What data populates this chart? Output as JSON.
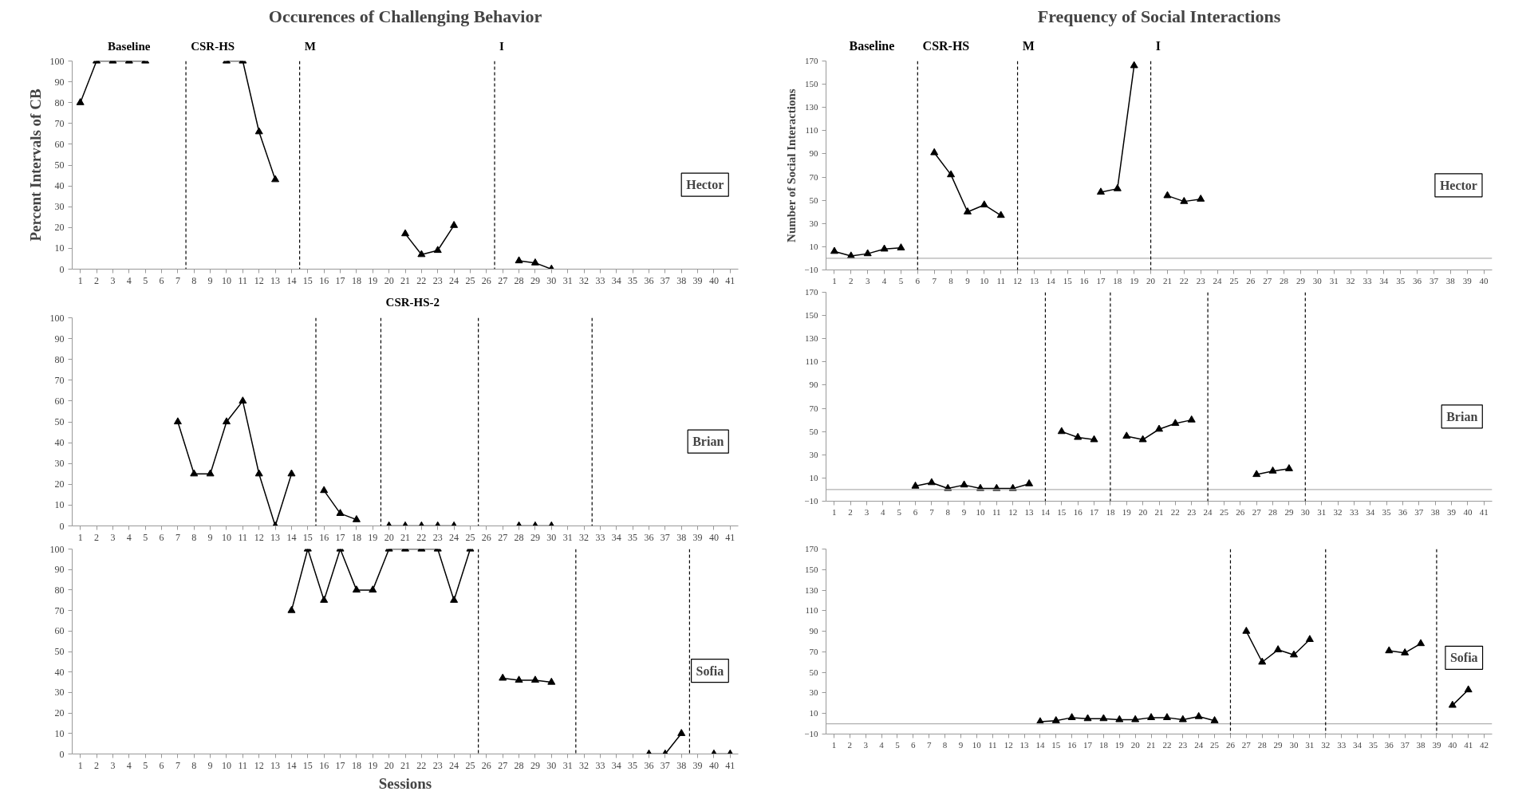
{
  "chart_data": [
    {
      "type": "line",
      "title": "Occurences of Challenging Behavior",
      "ylabel": "Percent Intervals of CB",
      "xlim": [
        0.5,
        41.5
      ],
      "xticks": [
        1,
        2,
        3,
        4,
        5,
        6,
        7,
        8,
        9,
        10,
        11,
        12,
        13,
        14,
        15,
        16,
        17,
        18,
        19,
        20,
        21,
        22,
        23,
        24,
        25,
        26,
        27,
        28,
        29,
        30,
        31,
        32,
        33,
        34,
        35,
        36,
        37,
        38,
        39,
        40,
        41
      ],
      "ylim": [
        0,
        100
      ],
      "yticks": [
        0,
        10,
        20,
        30,
        40,
        50,
        60,
        70,
        80,
        90,
        100
      ],
      "grid": false,
      "marker": "triangle",
      "line_style": "solid",
      "series": [
        {
          "color": "#000000",
          "x": [
            1,
            2,
            3,
            4,
            5,
            6,
            10,
            11,
            12,
            13,
            14,
            21,
            22,
            23,
            24,
            25,
            28,
            29,
            30
          ],
          "values": [
            80,
            100,
            100,
            100,
            100,
            null,
            100,
            100,
            66,
            43,
            null,
            17,
            7,
            9,
            21,
            null,
            4,
            3,
            0
          ]
        }
      ],
      "ref_lines": [
        {
          "axis": "x",
          "value": 7.5,
          "line_style": "dashed",
          "label": "CSR-HS"
        },
        {
          "axis": "x",
          "value": 14.5,
          "line_style": "dashed",
          "label": "M"
        },
        {
          "axis": "x",
          "value": 26.5,
          "line_style": "dashed",
          "label": "I"
        }
      ],
      "annotations": [
        "Baseline",
        "Hector"
      ]
    },
    {
      "type": "line",
      "xlim": [
        0.5,
        41.5
      ],
      "xticks": [
        1,
        2,
        3,
        4,
        5,
        6,
        7,
        8,
        9,
        10,
        11,
        12,
        13,
        14,
        15,
        16,
        17,
        18,
        19,
        20,
        21,
        22,
        23,
        24,
        25,
        26,
        27,
        28,
        29,
        30,
        31,
        32,
        33,
        34,
        35,
        36,
        37,
        38,
        39,
        40,
        41
      ],
      "ylim": [
        0,
        100
      ],
      "yticks": [
        0,
        10,
        20,
        30,
        40,
        50,
        60,
        70,
        80,
        90,
        100
      ],
      "grid": false,
      "marker": "triangle",
      "line_style": "solid",
      "series": [
        {
          "color": "#000000",
          "x": [
            7,
            8,
            9,
            10,
            11,
            12,
            13,
            14,
            15,
            16,
            17,
            18,
            19,
            20,
            21,
            22,
            23,
            24,
            25,
            28,
            29,
            30
          ],
          "values": [
            50,
            25,
            25,
            50,
            60,
            25,
            0,
            25,
            null,
            17,
            6,
            3,
            null,
            0,
            0,
            0,
            0,
            0,
            null,
            0,
            0,
            0
          ]
        }
      ],
      "ref_lines": [
        {
          "axis": "x",
          "value": 15.5,
          "line_style": "dashed"
        },
        {
          "axis": "x",
          "value": 19.5,
          "line_style": "dashed",
          "label": "CSR-HS-2"
        },
        {
          "axis": "x",
          "value": 25.5,
          "line_style": "dashed"
        },
        {
          "axis": "x",
          "value": 32.5,
          "line_style": "dashed"
        }
      ],
      "annotations": [
        "Brian"
      ]
    },
    {
      "type": "line",
      "xlabel": "Sessions",
      "xlim": [
        0.5,
        41.5
      ],
      "xticks": [
        1,
        2,
        3,
        4,
        5,
        6,
        7,
        8,
        9,
        10,
        11,
        12,
        13,
        14,
        15,
        16,
        17,
        18,
        19,
        20,
        21,
        22,
        23,
        24,
        25,
        26,
        27,
        28,
        29,
        30,
        31,
        32,
        33,
        34,
        35,
        36,
        37,
        38,
        39,
        40,
        41
      ],
      "ylim": [
        0,
        100
      ],
      "yticks": [
        0,
        10,
        20,
        30,
        40,
        50,
        60,
        70,
        80,
        90,
        100
      ],
      "grid": false,
      "marker": "triangle",
      "line_style": "solid",
      "series": [
        {
          "color": "#000000",
          "x": [
            14,
            15,
            16,
            17,
            18,
            19,
            20,
            21,
            22,
            23,
            24,
            25,
            26,
            27,
            28,
            29,
            30,
            31,
            36,
            37,
            38,
            39,
            40,
            41
          ],
          "values": [
            70,
            100,
            75,
            100,
            80,
            80,
            100,
            100,
            100,
            100,
            75,
            100,
            null,
            37,
            36,
            36,
            35,
            null,
            0,
            0,
            10,
            null,
            0,
            0
          ]
        }
      ],
      "ref_lines": [
        {
          "axis": "x",
          "value": 25.5,
          "line_style": "dashed"
        },
        {
          "axis": "x",
          "value": 31.5,
          "line_style": "dashed"
        },
        {
          "axis": "x",
          "value": 38.5,
          "line_style": "dashed"
        }
      ],
      "annotations": [
        "Sofia"
      ]
    },
    {
      "type": "line",
      "title": "Frequency of Social Interactions",
      "ylabel": "Number of Social Interactions",
      "xlim": [
        0.5,
        40.5
      ],
      "xticks": [
        1,
        2,
        3,
        4,
        5,
        6,
        7,
        8,
        9,
        10,
        11,
        12,
        13,
        14,
        15,
        16,
        17,
        18,
        19,
        20,
        21,
        22,
        23,
        24,
        25,
        26,
        27,
        28,
        29,
        30,
        31,
        32,
        33,
        34,
        35,
        36,
        37,
        38,
        39,
        40
      ],
      "ylim": [
        -10,
        170
      ],
      "yticks": [
        -10,
        10,
        30,
        50,
        70,
        90,
        110,
        130,
        150,
        170
      ],
      "grid": false,
      "marker": "triangle",
      "line_style": "solid",
      "series": [
        {
          "color": "#000000",
          "x": [
            1,
            2,
            3,
            4,
            5,
            6,
            7,
            8,
            9,
            10,
            11,
            12,
            17,
            18,
            19,
            20,
            21,
            22,
            23
          ],
          "values": [
            6,
            2,
            4,
            8,
            9,
            null,
            91,
            72,
            40,
            46,
            37,
            null,
            57,
            60,
            166,
            null,
            54,
            49,
            51
          ]
        }
      ],
      "ref_lines": [
        {
          "axis": "y",
          "value": 0,
          "color": "#b0b0b0",
          "line_style": "solid"
        },
        {
          "axis": "x",
          "value": 6,
          "line_style": "dashed",
          "label": "CSR-HS"
        },
        {
          "axis": "x",
          "value": 12,
          "line_style": "dashed",
          "label": "M"
        },
        {
          "axis": "x",
          "value": 20,
          "line_style": "dashed",
          "label": "I"
        }
      ],
      "annotations": [
        "Baseline",
        "Hector"
      ]
    },
    {
      "type": "line",
      "xlim": [
        0.5,
        41.5
      ],
      "xticks": [
        1,
        2,
        3,
        4,
        5,
        6,
        7,
        8,
        9,
        10,
        11,
        12,
        13,
        14,
        15,
        16,
        17,
        18,
        19,
        20,
        21,
        22,
        23,
        24,
        25,
        26,
        27,
        28,
        29,
        30,
        31,
        32,
        33,
        34,
        35,
        36,
        37,
        38,
        39,
        40,
        41
      ],
      "ylim": [
        -10,
        170
      ],
      "yticks": [
        -10,
        10,
        30,
        50,
        70,
        90,
        110,
        130,
        150,
        170
      ],
      "grid": false,
      "marker": "triangle",
      "line_style": "solid",
      "series": [
        {
          "color": "#000000",
          "x": [
            6,
            7,
            8,
            9,
            10,
            11,
            12,
            13,
            14,
            15,
            16,
            17,
            18,
            19,
            20,
            21,
            22,
            23,
            24,
            27,
            28,
            29
          ],
          "values": [
            3,
            6,
            1,
            4,
            1,
            1,
            1,
            5,
            null,
            50,
            45,
            43,
            null,
            46,
            43,
            52,
            57,
            60,
            null,
            13,
            16,
            18
          ]
        }
      ],
      "ref_lines": [
        {
          "axis": "y",
          "value": 0,
          "color": "#b0b0b0",
          "line_style": "solid"
        },
        {
          "axis": "x",
          "value": 14,
          "line_style": "dashed"
        },
        {
          "axis": "x",
          "value": 18,
          "line_style": "dashed"
        },
        {
          "axis": "x",
          "value": 24,
          "line_style": "dashed"
        },
        {
          "axis": "x",
          "value": 30,
          "line_style": "dashed"
        }
      ],
      "annotations": [
        "Brian"
      ]
    },
    {
      "type": "line",
      "xlim": [
        0.5,
        42.5
      ],
      "xticks": [
        1,
        2,
        3,
        4,
        5,
        6,
        7,
        8,
        9,
        10,
        11,
        12,
        13,
        14,
        15,
        16,
        17,
        18,
        19,
        20,
        21,
        22,
        23,
        24,
        25,
        26,
        27,
        28,
        29,
        30,
        31,
        32,
        33,
        34,
        35,
        36,
        37,
        38,
        39,
        40,
        41,
        42
      ],
      "ylim": [
        -10,
        170
      ],
      "yticks": [
        -10,
        10,
        30,
        50,
        70,
        90,
        110,
        130,
        150,
        170
      ],
      "grid": false,
      "marker": "triangle",
      "line_style": "solid",
      "series": [
        {
          "color": "#000000",
          "x": [
            14,
            15,
            16,
            17,
            18,
            19,
            20,
            21,
            22,
            23,
            24,
            25,
            26,
            27,
            28,
            29,
            30,
            31,
            32,
            36,
            37,
            38,
            39,
            40,
            41
          ],
          "values": [
            2,
            3,
            6,
            5,
            5,
            4,
            4,
            6,
            6,
            4,
            7,
            3,
            null,
            90,
            60,
            72,
            67,
            82,
            null,
            71,
            69,
            78,
            null,
            18,
            33
          ]
        }
      ],
      "ref_lines": [
        {
          "axis": "y",
          "value": 0,
          "color": "#b0b0b0",
          "line_style": "solid"
        },
        {
          "axis": "x",
          "value": 26,
          "line_style": "dashed"
        },
        {
          "axis": "x",
          "value": 32,
          "line_style": "dashed"
        },
        {
          "axis": "x",
          "value": 39,
          "line_style": "dashed"
        }
      ],
      "annotations": [
        "Sofia"
      ]
    }
  ]
}
